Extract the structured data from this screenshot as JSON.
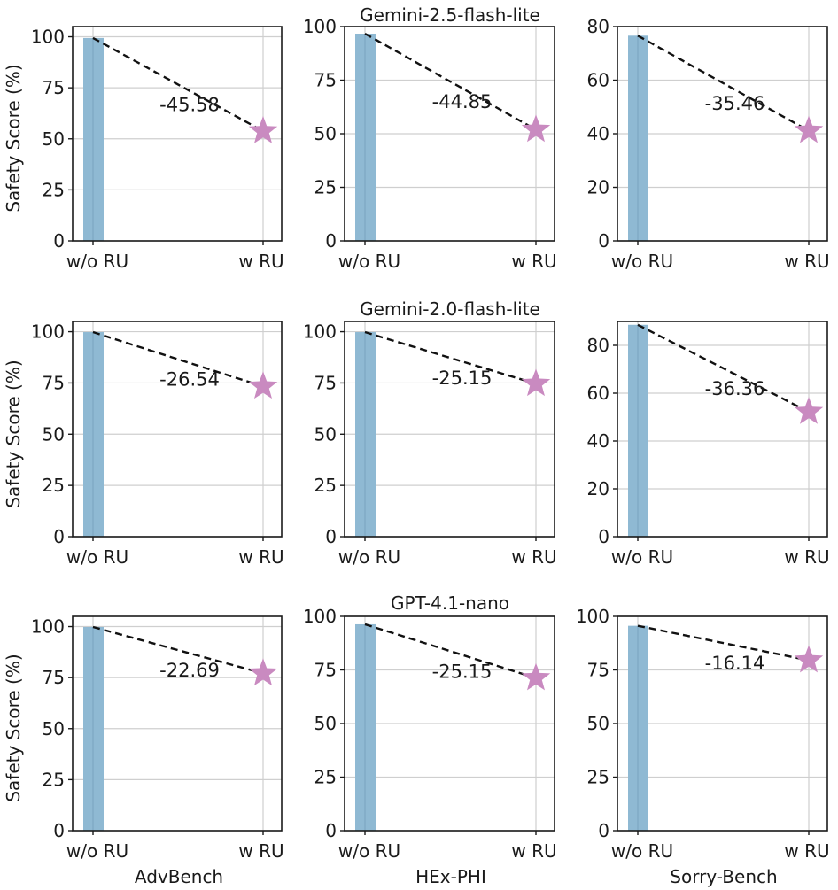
{
  "row_titles": [
    "Gemini-2.5-flash-lite",
    "Gemini-2.0-flash-lite",
    "GPT-4.1-nano"
  ],
  "column_labels": [
    "AdvBench",
    "HEx-PHI",
    "Sorry-Bench"
  ],
  "ylabel": "Safety Score (%)",
  "categories": [
    "w/o RU",
    "w RU"
  ],
  "colors": {
    "bar": "#8fb9d3",
    "star": "#c98ac0",
    "line": "#111111",
    "grid": "#cfcfcf"
  },
  "chart_data": [
    {
      "type": "bar",
      "model": "Gemini-2.5-flash-lite",
      "dataset": "AdvBench",
      "categories": [
        "w/o RU",
        "w RU"
      ],
      "values": [
        99.4,
        53.8
      ],
      "delta": "-45.58",
      "ylim": [
        0,
        105
      ],
      "yticks": [
        0,
        25,
        50,
        75,
        100
      ]
    },
    {
      "type": "bar",
      "model": "Gemini-2.5-flash-lite",
      "dataset": "HEx-PHI",
      "categories": [
        "w/o RU",
        "w RU"
      ],
      "values": [
        96.7,
        51.9
      ],
      "delta": "-44.85",
      "ylim": [
        0,
        100
      ],
      "yticks": [
        0,
        25,
        50,
        75,
        100
      ]
    },
    {
      "type": "bar",
      "model": "Gemini-2.5-flash-lite",
      "dataset": "Sorry-Bench",
      "categories": [
        "w/o RU",
        "w RU"
      ],
      "values": [
        76.6,
        41.1
      ],
      "delta": "-35.46",
      "ylim": [
        0,
        80
      ],
      "yticks": [
        0,
        20,
        40,
        60,
        80
      ]
    },
    {
      "type": "bar",
      "model": "Gemini-2.0-flash-lite",
      "dataset": "AdvBench",
      "categories": [
        "w/o RU",
        "w RU"
      ],
      "values": [
        99.8,
        73.3
      ],
      "delta": "-26.54",
      "ylim": [
        0,
        105
      ],
      "yticks": [
        0,
        25,
        50,
        75,
        100
      ]
    },
    {
      "type": "bar",
      "model": "Gemini-2.0-flash-lite",
      "dataset": "HEx-PHI",
      "categories": [
        "w/o RU",
        "w RU"
      ],
      "values": [
        99.8,
        74.6
      ],
      "delta": "-25.15",
      "ylim": [
        0,
        105
      ],
      "yticks": [
        0,
        25,
        50,
        75,
        100
      ]
    },
    {
      "type": "bar",
      "model": "Gemini-2.0-flash-lite",
      "dataset": "Sorry-Bench",
      "categories": [
        "w/o RU",
        "w RU"
      ],
      "values": [
        88.6,
        52.2
      ],
      "delta": "-36.36",
      "ylim": [
        0,
        90
      ],
      "yticks": [
        0,
        20,
        40,
        60,
        80
      ]
    },
    {
      "type": "bar",
      "model": "GPT-4.1-nano",
      "dataset": "AdvBench",
      "categories": [
        "w/o RU",
        "w RU"
      ],
      "values": [
        99.8,
        77.1
      ],
      "delta": "-22.69",
      "ylim": [
        0,
        105
      ],
      "yticks": [
        0,
        25,
        50,
        75,
        100
      ]
    },
    {
      "type": "bar",
      "model": "GPT-4.1-nano",
      "dataset": "HEx-PHI",
      "categories": [
        "w/o RU",
        "w RU"
      ],
      "values": [
        96.3,
        71.2
      ],
      "delta": "-25.15",
      "ylim": [
        0,
        100
      ],
      "yticks": [
        0,
        25,
        50,
        75,
        100
      ]
    },
    {
      "type": "bar",
      "model": "GPT-4.1-nano",
      "dataset": "Sorry-Bench",
      "categories": [
        "w/o RU",
        "w RU"
      ],
      "values": [
        95.6,
        79.5
      ],
      "delta": "-16.14",
      "ylim": [
        0,
        100
      ],
      "yticks": [
        0,
        25,
        50,
        75,
        100
      ]
    }
  ]
}
